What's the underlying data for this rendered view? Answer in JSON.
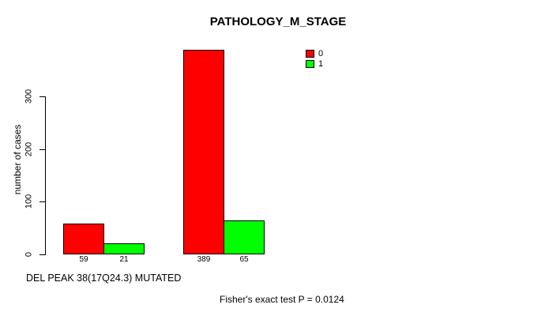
{
  "chart_data": {
    "type": "bar",
    "title": "PATHOLOGY_M_STAGE",
    "ylabel": "number of cases",
    "xlabel": "DEL PEAK 38(17Q24.3) MUTATED",
    "annotation": "Fisher's exact test P = 0.0124",
    "ylim": [
      0,
      300
    ],
    "yticks": [
      0,
      100,
      200,
      300
    ],
    "grid": false,
    "legend_position": "top-right",
    "series": [
      {
        "name": "0",
        "color": "#ff0000",
        "values": [
          59,
          389
        ]
      },
      {
        "name": "1",
        "color": "#00ff00",
        "values": [
          21,
          65
        ]
      }
    ],
    "bar_labels": [
      "59",
      "21",
      "389",
      "65"
    ],
    "colors": {
      "bar_border": "#000000",
      "axis": "#000000",
      "background": "#ffffff",
      "text": "#000000"
    }
  }
}
